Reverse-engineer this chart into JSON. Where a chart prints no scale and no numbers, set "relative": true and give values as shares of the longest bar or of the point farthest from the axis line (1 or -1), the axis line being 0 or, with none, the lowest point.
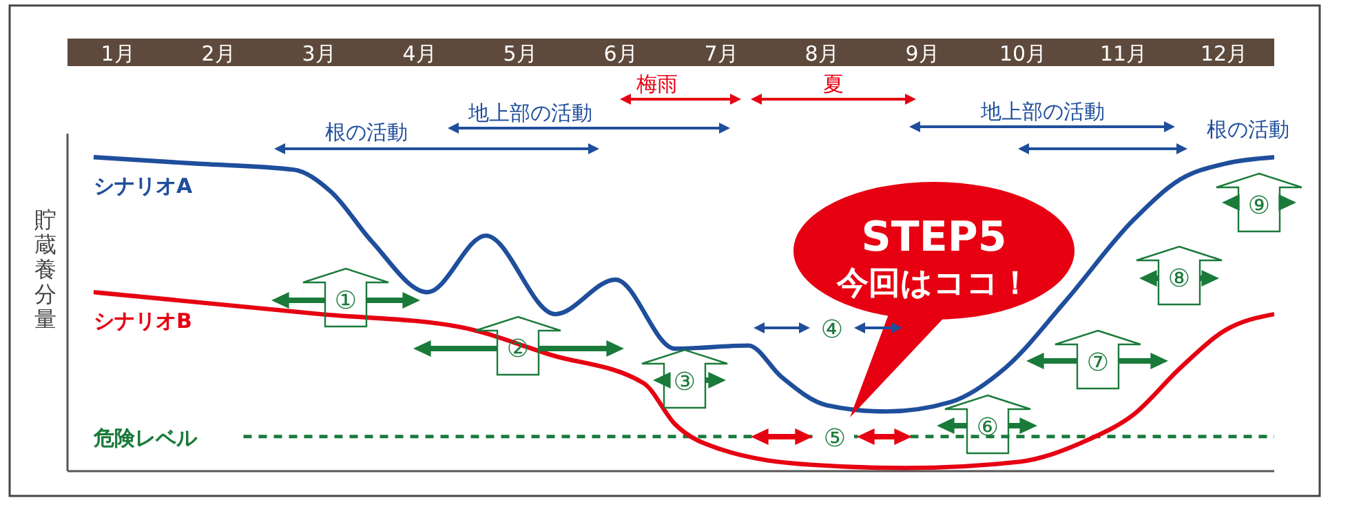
{
  "chart_data": {
    "type": "line",
    "relative": true,
    "ylabel": "貯蔵養分量",
    "marker": "none",
    "xlim": [
      0,
      12
    ],
    "xticks": [
      {
        "value": 0.5,
        "label": "1月"
      },
      {
        "value": 1.5,
        "label": "2月"
      },
      {
        "value": 2.5,
        "label": "3月"
      },
      {
        "value": 3.5,
        "label": "4月"
      },
      {
        "value": 4.5,
        "label": "5月"
      },
      {
        "value": 5.5,
        "label": "6月"
      },
      {
        "value": 6.5,
        "label": "7月"
      },
      {
        "value": 7.5,
        "label": "8月"
      },
      {
        "value": 8.5,
        "label": "9月"
      },
      {
        "value": 9.5,
        "label": "10月"
      },
      {
        "value": 10.5,
        "label": "11月"
      },
      {
        "value": 11.5,
        "label": "12月"
      }
    ],
    "series": [
      {
        "name": "シナリオA",
        "color": "#1f4e9c",
        "x": [
          0.26,
          1.25,
          2.25,
          2.62,
          3.03,
          3.58,
          4.16,
          4.85,
          5.45,
          6.04,
          6.77,
          7.1,
          7.55,
          8.14,
          8.78,
          9.33,
          9.92,
          10.6,
          11.07,
          11.52,
          12
        ],
        "values": [
          1.0,
          0.98,
          0.96,
          0.89,
          0.73,
          0.57,
          0.75,
          0.5,
          0.61,
          0.39,
          0.4,
          0.3,
          0.21,
          0.19,
          0.22,
          0.33,
          0.54,
          0.8,
          0.93,
          0.98,
          1.0
        ]
      },
      {
        "name": "シナリオB",
        "color": "#e60012",
        "x": [
          0.26,
          2.52,
          3.89,
          4.81,
          5.73,
          6.04,
          6.49,
          7.41,
          8.33,
          9.47,
          10.15,
          10.6,
          11.07,
          11.52,
          12
        ],
        "values": [
          0.57,
          0.5,
          0.46,
          0.37,
          0.28,
          0.15,
          0.07,
          0.02,
          0.01,
          0.03,
          0.1,
          0.18,
          0.33,
          0.45,
          0.5
        ]
      }
    ],
    "ref_lines": [
      {
        "axis": "y",
        "value": 0.11,
        "label": "危険レベル",
        "color": "#1a7a3a",
        "line_style": "dashed"
      }
    ],
    "annotations": [
      "根の活動",
      "地上部の活動",
      "梅雨",
      "夏",
      "地上部の活動",
      "根の活動",
      "①",
      "②",
      "③",
      "④",
      "⑤",
      "⑥",
      "⑦",
      "⑧",
      "⑨",
      "STEP5",
      "今回はココ！"
    ]
  }
}
